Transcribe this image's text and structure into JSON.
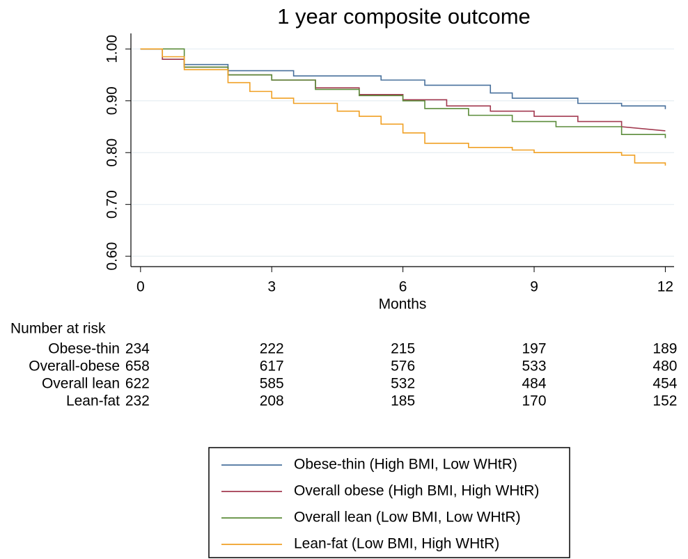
{
  "chart_data": {
    "type": "line",
    "title": "1 year composite outcome",
    "x_label": "Months",
    "xlim": [
      -0.22,
      12.2
    ],
    "ylim": [
      0.58,
      1.03
    ],
    "xticks": [
      0,
      3,
      6,
      9,
      12
    ],
    "yticks": [
      {
        "value": 0.6,
        "label": "0.60"
      },
      {
        "value": 0.7,
        "label": "0.70"
      },
      {
        "value": 0.8,
        "label": "0.80"
      },
      {
        "value": 0.9,
        "label": "0.90"
      },
      {
        "value": 1,
        "label": "1.00"
      }
    ],
    "grid": true,
    "series": [
      {
        "name": "Obese-thin (High BMI, Low WHtR)",
        "color": "#48709c",
        "x": [
          0,
          0.5,
          0.5,
          1,
          1,
          2,
          2,
          3.5,
          3.5,
          5.5,
          5.5,
          6.5,
          6.5,
          8,
          8,
          8.5,
          8.5,
          10,
          10,
          11,
          11,
          12,
          12
        ],
        "values": [
          1,
          1,
          0.98,
          0.98,
          0.97,
          0.97,
          0.958,
          0.958,
          0.948,
          0.948,
          0.94,
          0.94,
          0.93,
          0.93,
          0.915,
          0.915,
          0.905,
          0.905,
          0.895,
          0.895,
          0.89,
          0.89,
          0.884
        ]
      },
      {
        "name": "Overall obese (High BMI, High WHtR)",
        "color": "#a23a50",
        "x": [
          0,
          0.5,
          0.5,
          1,
          1,
          2,
          2,
          3,
          3,
          4,
          4,
          5,
          5,
          6,
          6,
          7,
          7,
          8,
          8,
          9,
          9,
          10,
          10,
          11,
          11,
          12
        ],
        "values": [
          1,
          1,
          0.98,
          0.98,
          0.965,
          0.965,
          0.95,
          0.95,
          0.94,
          0.94,
          0.925,
          0.925,
          0.912,
          0.912,
          0.902,
          0.902,
          0.89,
          0.89,
          0.88,
          0.88,
          0.87,
          0.87,
          0.86,
          0.86,
          0.85,
          0.842
        ]
      },
      {
        "name": "Overall lean (Low BMI, Low WHtR)",
        "color": "#5b8c3a",
        "x": [
          0,
          1,
          1,
          2,
          2,
          3,
          3,
          4,
          4,
          5,
          5,
          6,
          6,
          6.5,
          6.5,
          7.5,
          7.5,
          8.5,
          8.5,
          9.5,
          9.5,
          11,
          11,
          12,
          12
        ],
        "values": [
          1,
          1,
          0.965,
          0.965,
          0.95,
          0.95,
          0.94,
          0.94,
          0.922,
          0.922,
          0.91,
          0.91,
          0.9,
          0.9,
          0.885,
          0.885,
          0.872,
          0.872,
          0.86,
          0.86,
          0.85,
          0.85,
          0.835,
          0.835,
          0.828
        ]
      },
      {
        "name": "Lean-fat (Low BMI, High WHtR)",
        "color": "#f0a024",
        "x": [
          0,
          0.5,
          0.5,
          1,
          1,
          2,
          2,
          2.5,
          2.5,
          3,
          3,
          3.5,
          3.5,
          4.5,
          4.5,
          5,
          5,
          5.5,
          5.5,
          6,
          6,
          6.5,
          6.5,
          7.5,
          7.5,
          8.5,
          8.5,
          9,
          9,
          11,
          11,
          11.3,
          11.3,
          12,
          12
        ],
        "values": [
          1,
          1,
          0.985,
          0.985,
          0.96,
          0.96,
          0.935,
          0.935,
          0.918,
          0.918,
          0.905,
          0.905,
          0.895,
          0.895,
          0.88,
          0.88,
          0.87,
          0.87,
          0.855,
          0.855,
          0.838,
          0.838,
          0.818,
          0.818,
          0.81,
          0.81,
          0.805,
          0.805,
          0.8,
          0.8,
          0.795,
          0.795,
          0.78,
          0.78,
          0.775
        ]
      }
    ],
    "risk_table": {
      "title": "Number at risk",
      "rows": [
        {
          "label": "Obese-thin",
          "counts": [
            234,
            222,
            215,
            197,
            189
          ]
        },
        {
          "label": "Overall-obese",
          "counts": [
            658,
            617,
            576,
            533,
            480
          ]
        },
        {
          "label": "Overall lean",
          "counts": [
            622,
            585,
            532,
            484,
            454
          ]
        },
        {
          "label": "Lean-fat",
          "counts": [
            232,
            208,
            185,
            170,
            152
          ]
        }
      ]
    }
  }
}
